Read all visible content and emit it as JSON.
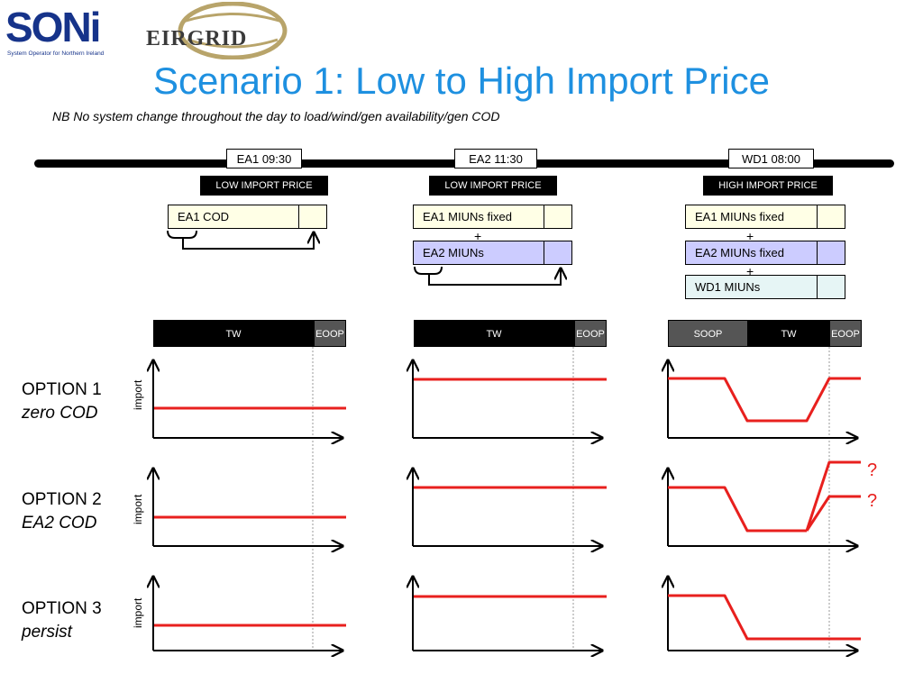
{
  "logos": {
    "soni_word": "SONi",
    "soni_tagline": "System Operator for Northern Ireland",
    "eirgrid_word": "EIRGRID"
  },
  "title": "Scenario 1: Low to High Import Price",
  "subtitle": "NB No system change throughout the day to load/wind/gen availability/gen COD",
  "events": [
    {
      "label": "EA1  09:30",
      "price": "LOW  IMPORT PRICE"
    },
    {
      "label": "EA2   11:30",
      "price": "LOW  IMPORT PRICE"
    },
    {
      "label": "WD1  08:00",
      "price": "HIGH  IMPORT PRICE"
    }
  ],
  "cells": {
    "col1": [
      "EA1 COD"
    ],
    "col2": [
      "EA1 MIUNs   fixed",
      "EA2 MIUNs"
    ],
    "col3": [
      "EA1 MIUNs fixed",
      "EA2 MIUNs fixed",
      "WD1 MIUNs"
    ],
    "plus": "+"
  },
  "segments": {
    "col1": [
      "TW",
      "EOOP"
    ],
    "col2": [
      "TW",
      "EOOP"
    ],
    "col3": [
      "SOOP",
      "TW",
      "EOOP"
    ]
  },
  "options": [
    {
      "name": "OPTION 1",
      "desc": "zero COD"
    },
    {
      "name": "OPTION 2",
      "desc": "EA2 COD"
    },
    {
      "name": "OPTION 3",
      "desc": "persist"
    }
  ],
  "axis_label": "import",
  "question_mark": "?",
  "colors": {
    "title": "#1e90e0",
    "line": "#e8201e",
    "cod": "#ffffe6",
    "miun_ea2": "#ccccff",
    "miun_wd1": "#e6f5f5"
  }
}
